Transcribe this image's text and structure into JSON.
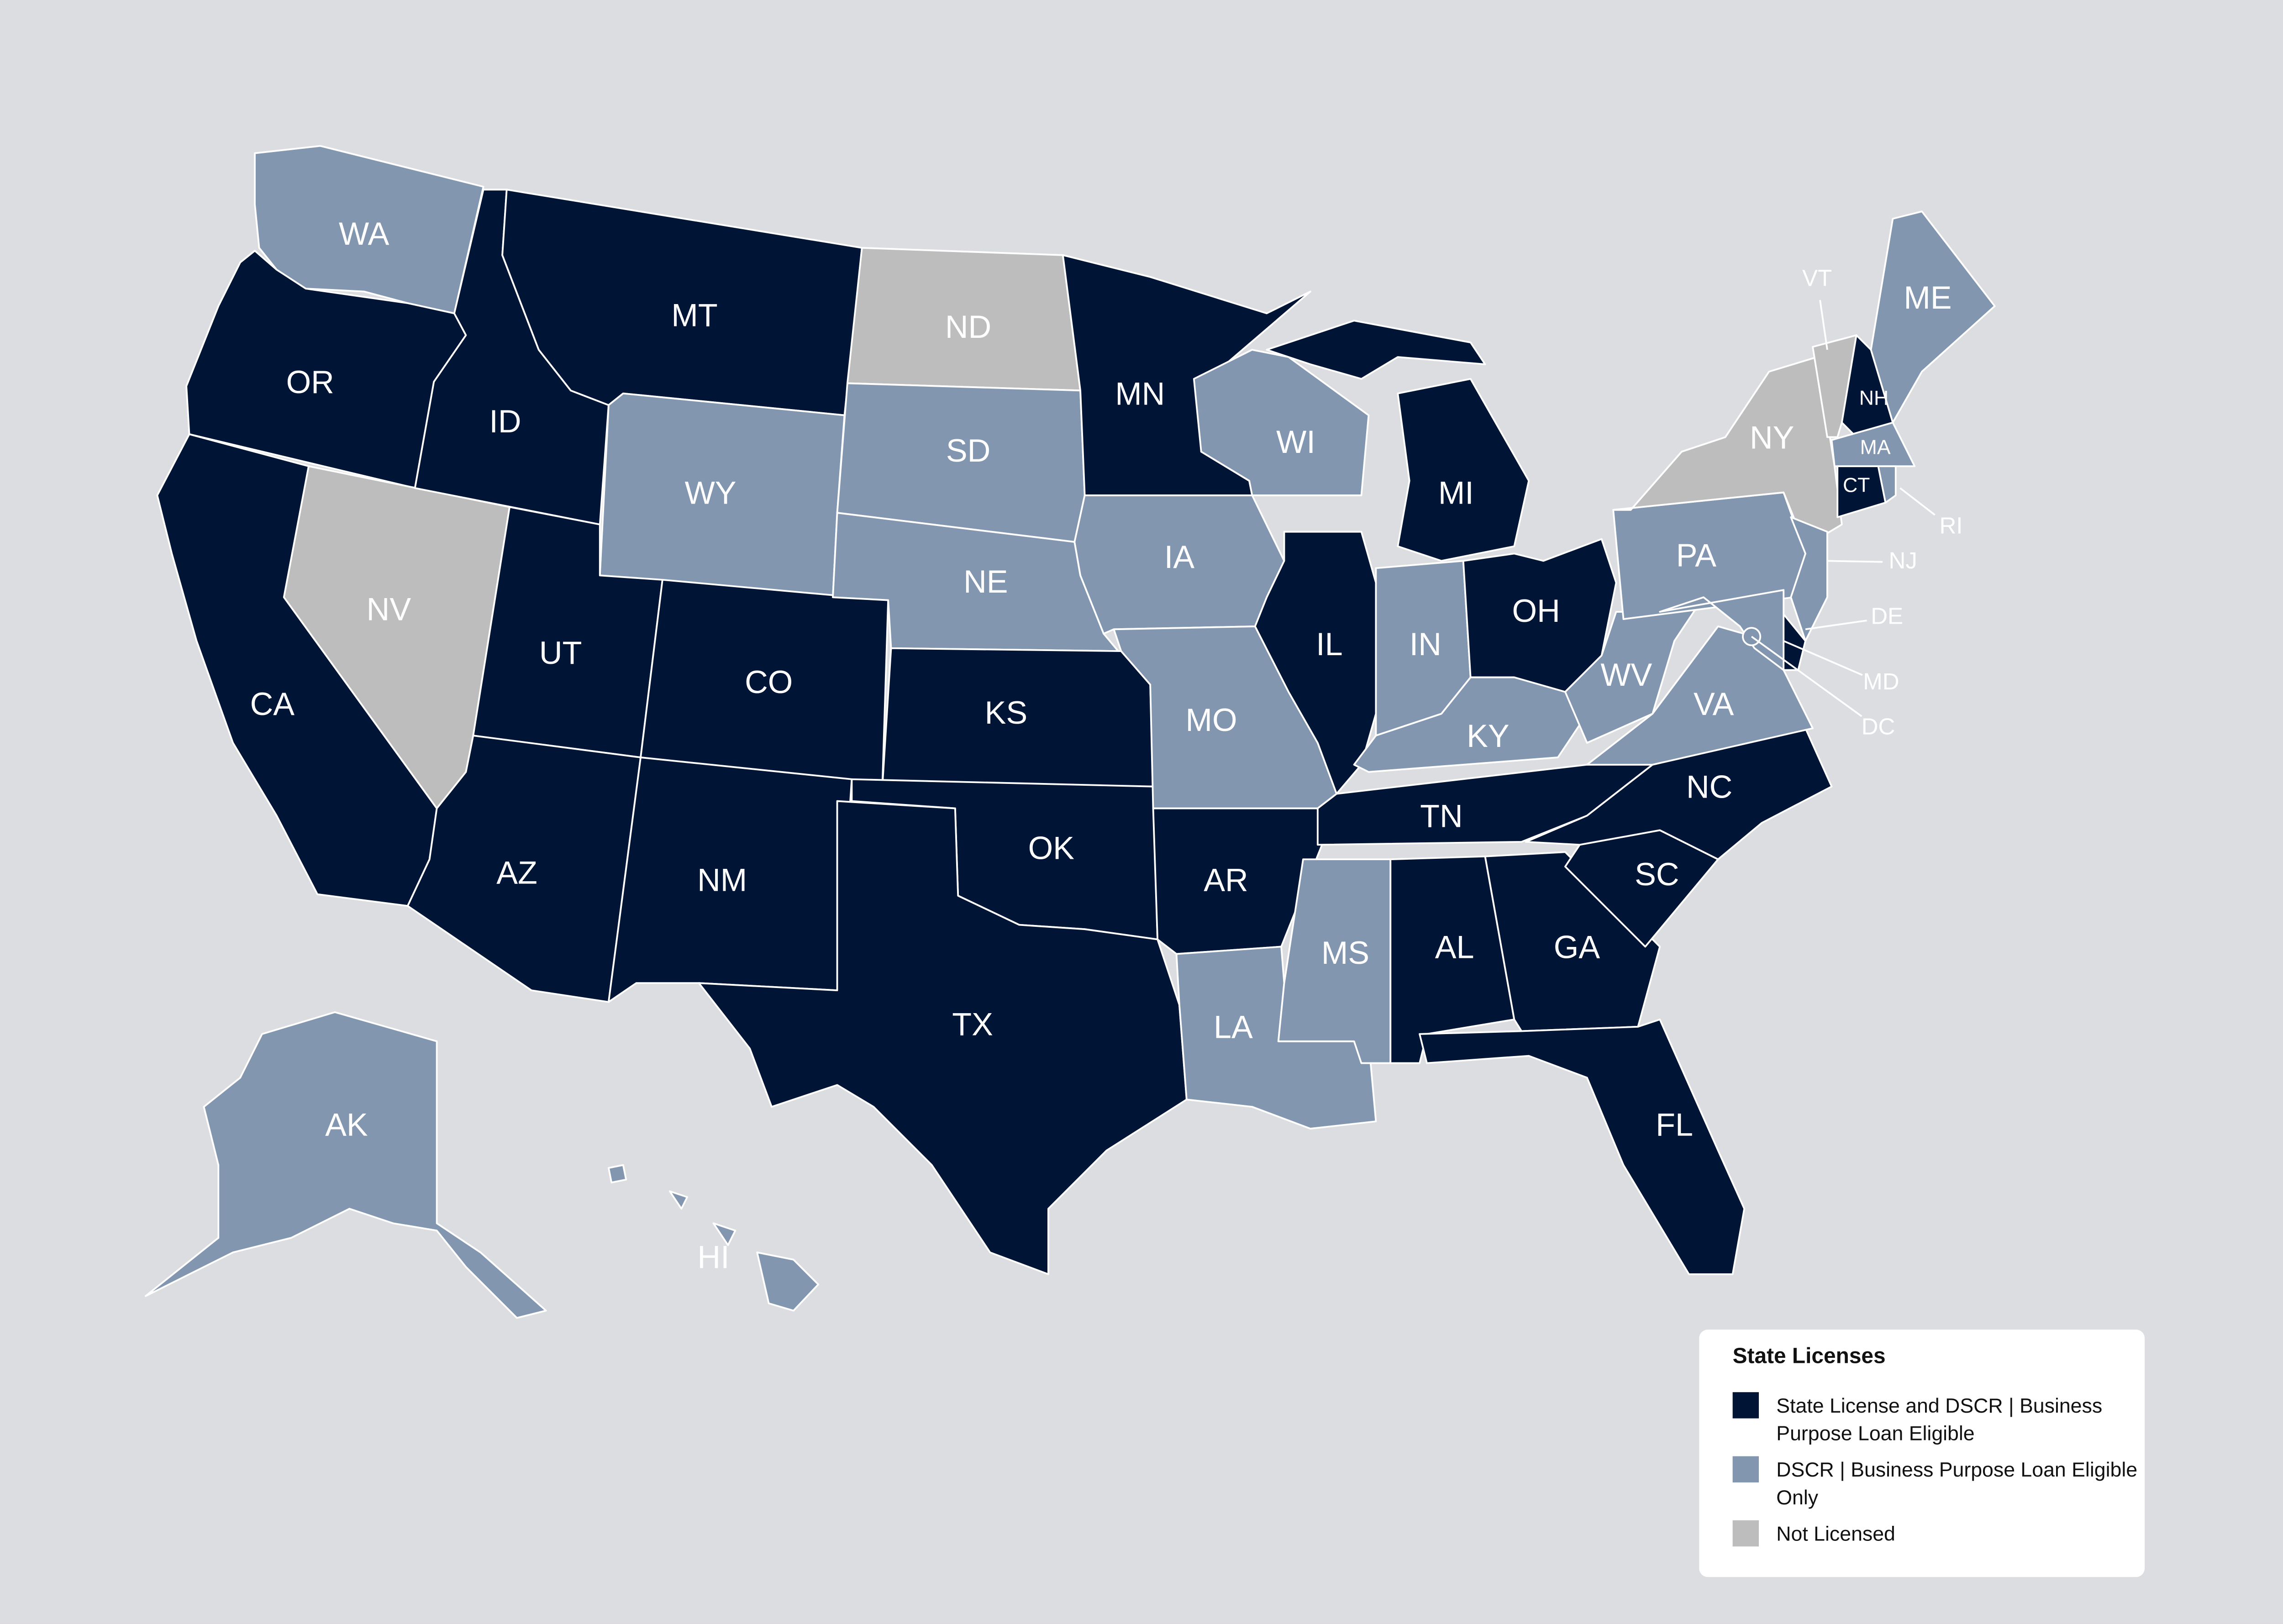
{
  "legend": {
    "title": "State Licenses",
    "items": [
      {
        "label": "State License and DSCR | Business Purpose Loan Eligible",
        "color": "#001535"
      },
      {
        "label": "DSCR | Business Purpose Loan Eligible Only",
        "color": "#8296b0"
      },
      {
        "label": "Not Licensed",
        "color": "#bdbdbd"
      }
    ]
  },
  "states": [
    {
      "label": "WA",
      "category": 1
    },
    {
      "label": "OR",
      "category": 0
    },
    {
      "label": "CA",
      "category": 0
    },
    {
      "label": "NV",
      "category": 2
    },
    {
      "label": "ID",
      "category": 0
    },
    {
      "label": "MT",
      "category": 0
    },
    {
      "label": "WY",
      "category": 1
    },
    {
      "label": "UT",
      "category": 0
    },
    {
      "label": "CO",
      "category": 0
    },
    {
      "label": "AZ",
      "category": 0
    },
    {
      "label": "NM",
      "category": 0
    },
    {
      "label": "ND",
      "category": 2
    },
    {
      "label": "SD",
      "category": 1
    },
    {
      "label": "NE",
      "category": 1
    },
    {
      "label": "KS",
      "category": 0
    },
    {
      "label": "OK",
      "category": 0
    },
    {
      "label": "TX",
      "category": 0
    },
    {
      "label": "MN",
      "category": 0
    },
    {
      "label": "IA",
      "category": 1
    },
    {
      "label": "MO",
      "category": 1
    },
    {
      "label": "AR",
      "category": 0
    },
    {
      "label": "LA",
      "category": 1
    },
    {
      "label": "WI",
      "category": 1
    },
    {
      "label": "IL",
      "category": 0
    },
    {
      "label": "MI",
      "category": 0
    },
    {
      "label": "IN",
      "category": 1
    },
    {
      "label": "OH",
      "category": 0
    },
    {
      "label": "KY",
      "category": 1
    },
    {
      "label": "TN",
      "category": 0
    },
    {
      "label": "MS",
      "category": 1
    },
    {
      "label": "AL",
      "category": 0
    },
    {
      "label": "GA",
      "category": 0
    },
    {
      "label": "FL",
      "category": 0
    },
    {
      "label": "SC",
      "category": 0
    },
    {
      "label": "NC",
      "category": 0
    },
    {
      "label": "VA",
      "category": 1
    },
    {
      "label": "WV",
      "category": 1
    },
    {
      "label": "PA",
      "category": 1
    },
    {
      "label": "NY",
      "category": 2
    },
    {
      "label": "VT",
      "category": 2
    },
    {
      "label": "NH",
      "category": 0
    },
    {
      "label": "ME",
      "category": 1
    },
    {
      "label": "MA",
      "category": 1
    },
    {
      "label": "CT",
      "category": 0
    },
    {
      "label": "RI",
      "category": 1
    },
    {
      "label": "NJ",
      "category": 1
    },
    {
      "label": "DE",
      "category": 0
    },
    {
      "label": "MD",
      "category": 1
    },
    {
      "label": "DC",
      "category": 1
    },
    {
      "label": "AK",
      "category": 1
    },
    {
      "label": "HI",
      "category": 1
    }
  ]
}
